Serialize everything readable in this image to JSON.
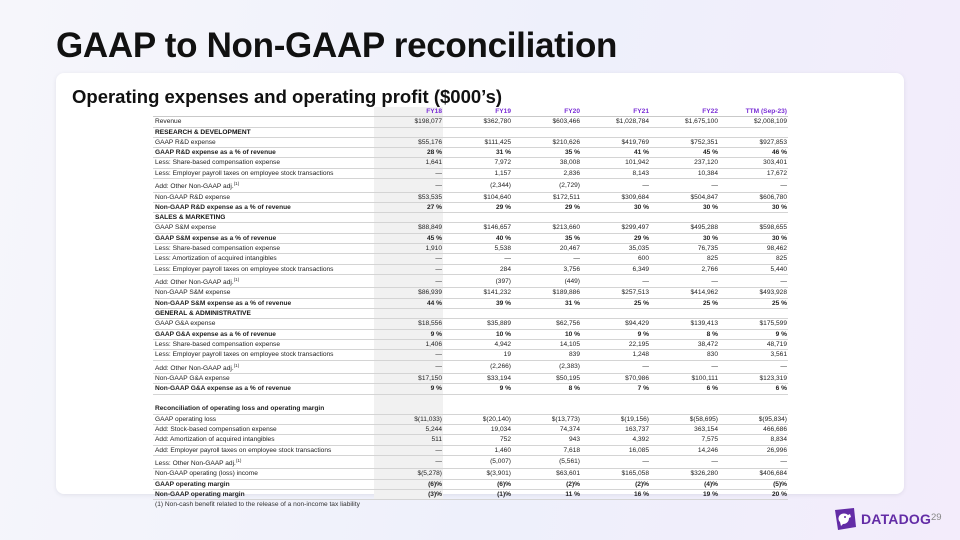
{
  "title": "GAAP to Non-GAAP reconciliation",
  "subtitle": "Operating expenses and operating profit ($000’s)",
  "columns": [
    "FY18",
    "FY19",
    "FY20",
    "FY21",
    "FY22",
    "TTM (Sep-23)"
  ],
  "rows": [
    {
      "label": "Revenue",
      "values": [
        "$198,077",
        "$362,780",
        "$603,466",
        "$1,028,784",
        "$1,675,100",
        "$2,008,109"
      ]
    },
    {
      "label": "RESEARCH & DEVELOPMENT",
      "values": [
        "",
        "",
        "",
        "",
        "",
        ""
      ],
      "type": "section"
    },
    {
      "label": "GAAP R&D expense",
      "values": [
        "$55,176",
        "$111,425",
        "$210,626",
        "$419,769",
        "$752,351",
        "$927,853"
      ]
    },
    {
      "label": "GAAP R&D expense as a % of revenue",
      "values": [
        "28 %",
        "31 %",
        "35 %",
        "41 %",
        "45 %",
        "46 %"
      ],
      "type": "bold"
    },
    {
      "label": "Less: Share-based compensation expense",
      "values": [
        "1,641",
        "7,972",
        "38,008",
        "101,942",
        "237,120",
        "303,401"
      ]
    },
    {
      "label": "Less: Employer payroll taxes on employee stock transactions",
      "values": [
        "—",
        "1,157",
        "2,836",
        "8,143",
        "10,384",
        "17,672"
      ]
    },
    {
      "label": "Add: Other Non-GAAP adj.",
      "sup": "(1)",
      "values": [
        "—",
        "(2,344)",
        "(2,729)",
        "—",
        "—",
        "—"
      ]
    },
    {
      "label": "Non-GAAP R&D expense",
      "values": [
        "$53,535",
        "$104,640",
        "$172,511",
        "$309,684",
        "$504,847",
        "$606,780"
      ]
    },
    {
      "label": "Non-GAAP R&D expense as a % of revenue",
      "values": [
        "27 %",
        "29 %",
        "29 %",
        "30 %",
        "30 %",
        "30 %"
      ],
      "type": "bold"
    },
    {
      "label": "SALES & MARKETING",
      "values": [
        "",
        "",
        "",
        "",
        "",
        ""
      ],
      "type": "section"
    },
    {
      "label": "GAAP S&M expense",
      "values": [
        "$88,849",
        "$146,657",
        "$213,660",
        "$299,497",
        "$495,288",
        "$598,655"
      ]
    },
    {
      "label": "GAAP S&M expense as a % of revenue",
      "values": [
        "45 %",
        "40 %",
        "35 %",
        "29 %",
        "30 %",
        "30 %"
      ],
      "type": "bold"
    },
    {
      "label": "Less: Share-based compensation expense",
      "values": [
        "1,910",
        "5,538",
        "20,467",
        "35,035",
        "76,735",
        "98,462"
      ]
    },
    {
      "label": "Less: Amortization of acquired intangibles",
      "values": [
        "—",
        "—",
        "—",
        "600",
        "825",
        "825"
      ]
    },
    {
      "label": "Less: Employer payroll taxes on employee stock transactions",
      "values": [
        "—",
        "284",
        "3,756",
        "6,349",
        "2,766",
        "5,440"
      ]
    },
    {
      "label": "Add: Other Non-GAAP adj.",
      "sup": "(1)",
      "values": [
        "—",
        "(397)",
        "(449)",
        "—",
        "—",
        "—"
      ]
    },
    {
      "label": "Non-GAAP S&M expense",
      "values": [
        "$86,939",
        "$141,232",
        "$189,886",
        "$257,513",
        "$414,962",
        "$493,928"
      ]
    },
    {
      "label": "Non-GAAP S&M expense as a % of revenue",
      "values": [
        "44 %",
        "39 %",
        "31 %",
        "25 %",
        "25 %",
        "25 %"
      ],
      "type": "bold"
    },
    {
      "label": "GENERAL & ADMINISTRATIVE",
      "values": [
        "",
        "",
        "",
        "",
        "",
        ""
      ],
      "type": "section"
    },
    {
      "label": "GAAP G&A expense",
      "values": [
        "$18,556",
        "$35,889",
        "$62,756",
        "$94,429",
        "$139,413",
        "$175,599"
      ]
    },
    {
      "label": "GAAP G&A expense as a % of revenue",
      "values": [
        "9 %",
        "10 %",
        "10 %",
        "9 %",
        "8 %",
        "9 %"
      ],
      "type": "bold"
    },
    {
      "label": "Less: Share-based compensation expense",
      "values": [
        "1,406",
        "4,942",
        "14,105",
        "22,195",
        "38,472",
        "48,719"
      ]
    },
    {
      "label": "Less: Employer payroll taxes on employee stock transactions",
      "values": [
        "—",
        "19",
        "839",
        "1,248",
        "830",
        "3,561"
      ]
    },
    {
      "label": "Add: Other Non-GAAP adj.",
      "sup": "(1)",
      "values": [
        "—",
        "(2,266)",
        "(2,383)",
        "—",
        "—",
        "—"
      ]
    },
    {
      "label": "Non-GAAP G&A expense",
      "values": [
        "$17,150",
        "$33,194",
        "$50,195",
        "$70,986",
        "$100,111",
        "$123,319"
      ]
    },
    {
      "label": "Non-GAAP G&A expense as a % of revenue",
      "values": [
        "9 %",
        "9 %",
        "8 %",
        "7 %",
        "6 %",
        "6 %"
      ],
      "type": "bold"
    },
    {
      "label": "",
      "values": [
        "",
        "",
        "",
        "",
        "",
        ""
      ],
      "type": "blank"
    },
    {
      "label": "Reconciliation of operating loss and operating margin",
      "values": [
        "",
        "",
        "",
        "",
        "",
        ""
      ],
      "type": "recon"
    },
    {
      "label": "GAAP operating loss",
      "values": [
        "$(11,033)",
        "$(20,140)",
        "$(13,773)",
        "$(19,156)",
        "$(58,695)",
        "$(95,834)"
      ]
    },
    {
      "label": "Add: Stock-based compensation expense",
      "values": [
        "5,244",
        "19,034",
        "74,374",
        "163,737",
        "363,154",
        "466,686"
      ]
    },
    {
      "label": "Add: Amortization of acquired intangibles",
      "values": [
        "511",
        "752",
        "943",
        "4,392",
        "7,575",
        "8,834"
      ]
    },
    {
      "label": "Add: Employer payroll taxes on employee stock transactions",
      "values": [
        "—",
        "1,460",
        "7,618",
        "16,085",
        "14,246",
        "26,996"
      ]
    },
    {
      "label": "Less: Other Non-GAAP adj.",
      "sup": "(1)",
      "values": [
        "—",
        "(5,007)",
        "(5,561)",
        "—",
        "—",
        "—"
      ]
    },
    {
      "label": "Non-GAAP operating (loss) income",
      "values": [
        "$(5,278)",
        "$(3,901)",
        "$63,601",
        "$165,058",
        "$326,280",
        "$406,684"
      ]
    },
    {
      "label": "GAAP operating margin",
      "values": [
        "(6)%",
        "(6)%",
        "(2)%",
        "(2)%",
        "(4)%",
        "(5)%"
      ],
      "type": "bold"
    },
    {
      "label": "Non-GAAP operating margin",
      "values": [
        "(3)%",
        "(1)%",
        "11 %",
        "16 %",
        "19 %",
        "20 %"
      ],
      "type": "bold"
    }
  ],
  "footnote": "(1) Non-cash benefit related to the release of a non-income tax liability",
  "logo_text": "DATADOG",
  "logo_icon": "datadog-dog-icon",
  "page_number": "29",
  "colors": {
    "accent": "#632ca6",
    "header": "#7a2fd6"
  }
}
